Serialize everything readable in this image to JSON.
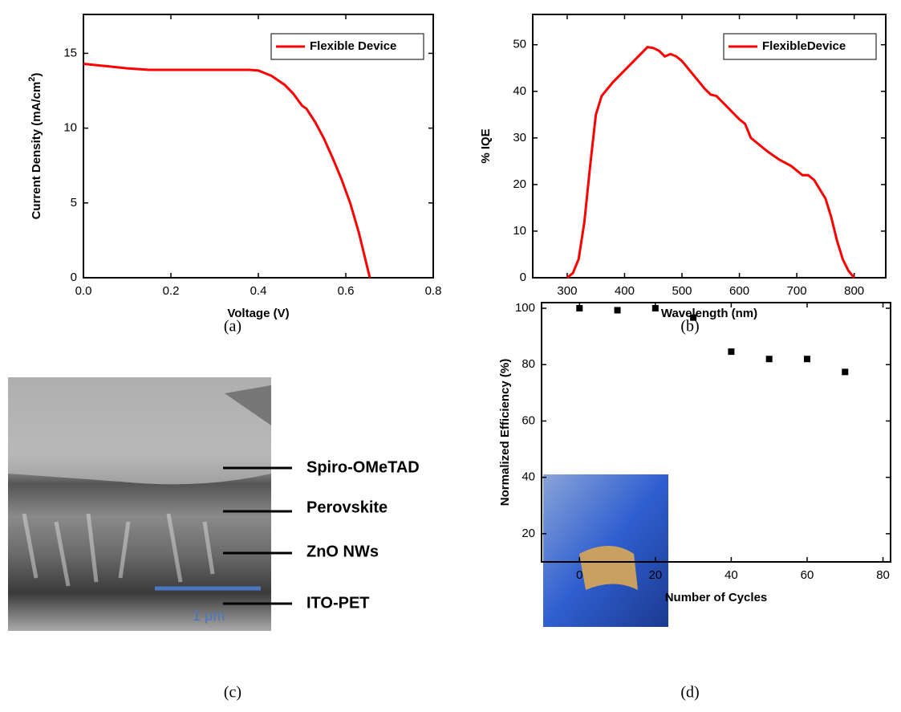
{
  "chart_data": [
    {
      "type": "line",
      "caption": "(a)",
      "xlabel": "Voltage (V)",
      "ylabel": [
        "Current Density (mA/cm",
        "2",
        ")"
      ],
      "xlim": [
        0,
        0.8
      ],
      "ylim": [
        0,
        17.6
      ],
      "xticks": [
        {
          "value": 0,
          "label": "0.0"
        },
        0.2,
        0.4,
        0.6,
        0.8
      ],
      "yticks": [
        0,
        5,
        10,
        15
      ],
      "legend": "upper right",
      "x": [
        0,
        0.05,
        0.1,
        0.15,
        0.2,
        0.3,
        0.38,
        0.4,
        0.43,
        0.46,
        0.48,
        0.5,
        0.51,
        0.53,
        0.55,
        0.57,
        0.59,
        0.61,
        0.63,
        0.645,
        0.655
      ],
      "series": [
        {
          "name": "Flexible Device",
          "color": "#ff0000",
          "values": [
            14.3,
            14.15,
            14.0,
            13.9,
            13.9,
            13.9,
            13.9,
            13.85,
            13.5,
            12.9,
            12.3,
            11.5,
            11.3,
            10.4,
            9.3,
            8.0,
            6.6,
            5.0,
            3.0,
            1.2,
            0
          ]
        }
      ]
    },
    {
      "type": "line",
      "caption": "(b)",
      "xlabel": "Wavelength (nm)",
      "ylabel": [
        "% IQE"
      ],
      "xlim": [
        240,
        855
      ],
      "ylim": [
        0,
        56.5
      ],
      "xticks": [
        300,
        400,
        500,
        600,
        700,
        800
      ],
      "yticks": [
        0,
        10,
        20,
        30,
        40,
        50
      ],
      "legend": "upper right",
      "x": [
        300,
        310,
        320,
        330,
        340,
        350,
        360,
        370,
        380,
        400,
        420,
        440,
        450,
        460,
        470,
        480,
        490,
        500,
        520,
        540,
        550,
        560,
        580,
        600,
        610,
        620,
        630,
        650,
        670,
        690,
        710,
        720,
        730,
        750,
        760,
        770,
        780,
        790,
        800
      ],
      "series": [
        {
          "name": "FlexibleDevice",
          "color": "#ff0000",
          "values": [
            0,
            1,
            4,
            12,
            24,
            35,
            39,
            40.5,
            42,
            44.5,
            47,
            49.5,
            49.3,
            48.7,
            47.5,
            48,
            47.5,
            46.5,
            43.5,
            40.5,
            39.3,
            39,
            36.5,
            34,
            33,
            30,
            29,
            27,
            25.3,
            24,
            22,
            22,
            21,
            17,
            13,
            8,
            4,
            1.5,
            0
          ]
        }
      ]
    },
    {
      "type": "scatter",
      "caption": "(d)",
      "xlabel": "Number of Cycles",
      "ylabel": [
        "Normalized Efficiency (%)"
      ],
      "xlim": [
        -10,
        82
      ],
      "ylim": [
        10,
        102
      ],
      "xticks": [
        0,
        20,
        40,
        60,
        80
      ],
      "yticks": [
        20,
        40,
        60,
        80,
        100
      ],
      "x": [
        0,
        10,
        20,
        30,
        40,
        50,
        60,
        70
      ],
      "series": [
        {
          "color": "#000000",
          "values": [
            100,
            99.3,
            100,
            96.7,
            84.6,
            82,
            82,
            77.4
          ]
        }
      ]
    }
  ],
  "image_panel": {
    "caption": "(c)",
    "layers": [
      "Spiro-OMeTAD",
      "Perovskite",
      "ZnO NWs",
      "ITO-PET"
    ],
    "scale_bar": "1 μm"
  }
}
